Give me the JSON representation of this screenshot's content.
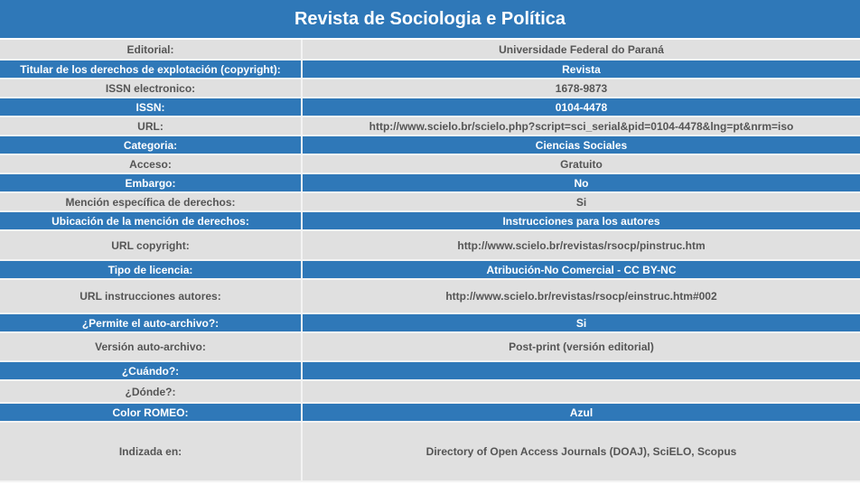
{
  "title": "Revista de Sociologia e Política",
  "rows": [
    {
      "label": "Editorial:",
      "value": "Universidade Federal do Paraná"
    },
    {
      "label": "Titular de los derechos de explotación (copyright):",
      "value": "Revista"
    },
    {
      "label": "ISSN electronico:",
      "value": "1678-9873"
    },
    {
      "label": "ISSN:",
      "value": "0104-4478"
    },
    {
      "label": "URL:",
      "value": "http://www.scielo.br/scielo.php?script=sci_serial&pid=0104-4478&lng=pt&nrm=iso"
    },
    {
      "label": "Categoria:",
      "value": "Ciencias Sociales"
    },
    {
      "label": "Acceso:",
      "value": "Gratuito"
    },
    {
      "label": "Embargo:",
      "value": "No"
    },
    {
      "label": "Mención específica de derechos:",
      "value": "Si"
    },
    {
      "label": "Ubicación de la mención de derechos:",
      "value": "Instrucciones para los autores"
    },
    {
      "label": "URL copyright:",
      "value": "http://www.scielo.br/revistas/rsocp/pinstruc.htm"
    },
    {
      "label": "Tipo de licencia:",
      "value": "Atribución-No Comercial - CC BY-NC"
    },
    {
      "label": "URL instrucciones autores:",
      "value": "http://www.scielo.br/revistas/rsocp/einstruc.htm#002"
    },
    {
      "label": "¿Permite el auto-archivo?:",
      "value": "Si"
    },
    {
      "label": "Versión auto-archivo:",
      "value": "Post-print (versión editorial)"
    },
    {
      "label": "¿Cuándo?:",
      "value": ""
    },
    {
      "label": "¿Dónde?:",
      "value": ""
    },
    {
      "label": "Color ROMEO:",
      "value": "Azul"
    },
    {
      "label": "Indizada en:",
      "value": "Directory of Open Access Journals (DOAJ), SciELO, Scopus"
    }
  ],
  "colors": {
    "header_blue": "#2f78b8",
    "row_grey": "#e0e0e0",
    "text_grey": "#555555"
  }
}
